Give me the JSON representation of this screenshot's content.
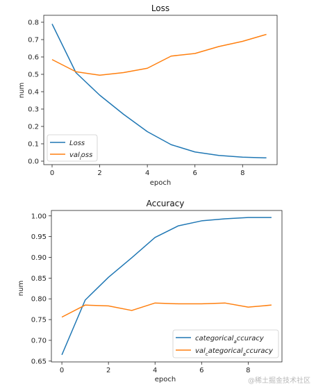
{
  "colors": {
    "series1": "#1f77b4",
    "series2": "#ff7f0e"
  },
  "watermark": "@稀土掘金技术社区",
  "chart_data": [
    {
      "type": "line",
      "title": "Loss",
      "xlabel": "epoch",
      "ylabel": "num",
      "x": [
        0,
        1,
        2,
        3,
        4,
        5,
        6,
        7,
        8,
        9
      ],
      "xlim": [
        -0.35,
        9.45
      ],
      "ylim": [
        -0.02,
        0.84
      ],
      "xticks": [
        "0",
        "2",
        "4",
        "6",
        "8"
      ],
      "yticks": [
        "0.0",
        "0.1",
        "0.2",
        "0.3",
        "0.4",
        "0.5",
        "0.6",
        "0.7",
        "0.8"
      ],
      "grid": false,
      "legend_position": "lower-left",
      "series": [
        {
          "name": "Loss",
          "values": [
            0.79,
            0.51,
            0.38,
            0.27,
            0.17,
            0.095,
            0.053,
            0.033,
            0.023,
            0.019
          ]
        },
        {
          "name": "val_loss",
          "legend_text": "$val_loss$",
          "values": [
            0.585,
            0.515,
            0.495,
            0.51,
            0.535,
            0.605,
            0.62,
            0.66,
            0.69,
            0.73
          ]
        }
      ]
    },
    {
      "type": "line",
      "title": "Accuracy",
      "xlabel": "epoch",
      "ylabel": "num",
      "x": [
        0,
        1,
        2,
        3,
        4,
        5,
        6,
        7,
        8,
        9
      ],
      "xlim": [
        -0.45,
        9.45
      ],
      "ylim": [
        0.648,
        1.013
      ],
      "xticks": [
        "0",
        "2",
        "4",
        "6",
        "8"
      ],
      "yticks": [
        "0.65",
        "0.70",
        "0.75",
        "0.80",
        "0.85",
        "0.90",
        "0.95",
        "1.00"
      ],
      "grid": false,
      "legend_position": "lower-right",
      "series": [
        {
          "name": "categorical_accuracy",
          "legend_text": "$categorical_accuracy$",
          "values": [
            0.665,
            0.797,
            0.852,
            0.899,
            0.948,
            0.976,
            0.988,
            0.993,
            0.996,
            0.996
          ]
        },
        {
          "name": "val_categorical_accuracy",
          "legend_text": "$val_categorical_accuracy$",
          "values": [
            0.756,
            0.785,
            0.783,
            0.772,
            0.79,
            0.788,
            0.788,
            0.79,
            0.78,
            0.785
          ]
        }
      ]
    }
  ]
}
